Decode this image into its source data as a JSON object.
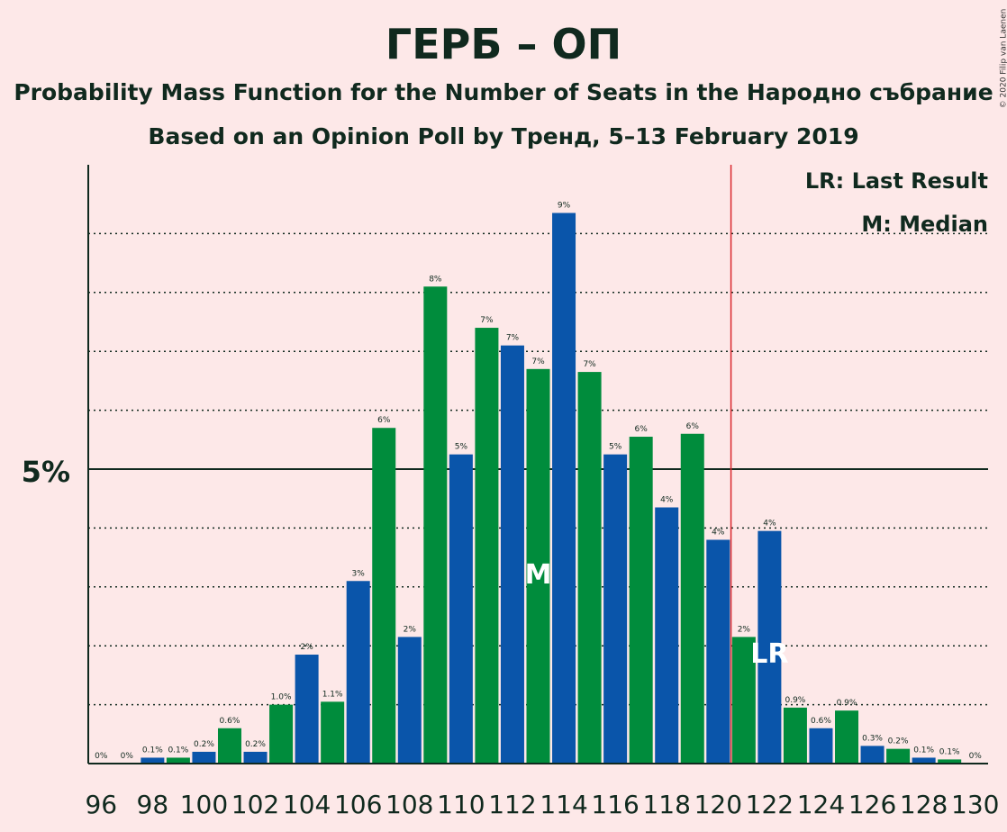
{
  "title": "ГЕРБ – ОП",
  "subtitle": "Probability Mass Function for the Number of Seats in the Народно събрание",
  "subtitle2": "Based on an Opinion Poll by Тренд, 5–13 February 2019",
  "credit": "© 2020 Filip van Laenen",
  "legend": {
    "last_result": "LR: Last Result",
    "median": "M: Median"
  },
  "colors": {
    "background": "#fde8e8",
    "green": "#008c3c",
    "blue": "#0a55aa",
    "last_result_line": "#d9262b",
    "text": "#10291e"
  },
  "chart_data": {
    "type": "bar",
    "x": [
      96,
      97,
      98,
      99,
      100,
      101,
      102,
      103,
      104,
      105,
      106,
      107,
      108,
      109,
      110,
      111,
      112,
      113,
      114,
      115,
      116,
      117,
      118,
      119,
      120,
      121,
      122,
      123,
      124,
      125,
      126,
      127,
      128,
      129,
      130
    ],
    "values": [
      0,
      0,
      0.1,
      0.1,
      0.2,
      0.6,
      0.2,
      1.0,
      1.85,
      1.05,
      3.1,
      5.7,
      2.15,
      8.1,
      5.25,
      7.4,
      7.1,
      6.7,
      9.35,
      6.65,
      5.25,
      5.55,
      4.35,
      5.6,
      3.8,
      2.15,
      3.95,
      0.95,
      0.6,
      0.9,
      0.3,
      0.25,
      0.1,
      0.07,
      0
    ],
    "data_labels": [
      "0%",
      "0%",
      "0.1%",
      "0.1%",
      "0.2%",
      "0.6%",
      "0.2%",
      "1.0%",
      "2%",
      "1.1%",
      "3%",
      "6%",
      "2%",
      "8%",
      "5%",
      "7%",
      "7%",
      "7%",
      "9%",
      "7%",
      "5%",
      "6%",
      "4%",
      "6%",
      "4%",
      "2%",
      "4%",
      "0.9%",
      "0.6%",
      "0.9%",
      "0.3%",
      "0.2%",
      "0.1%",
      "0.1%",
      "0%"
    ],
    "x_tick_labels": [
      "96",
      "98",
      "100",
      "102",
      "104",
      "106",
      "108",
      "110",
      "112",
      "114",
      "116",
      "118",
      "120",
      "122",
      "124",
      "126",
      "128",
      "130"
    ],
    "y_tick_label": "5%",
    "ylim": [
      0,
      10
    ],
    "y_gridlines": [
      1,
      2,
      3,
      4,
      6,
      7,
      8,
      9
    ],
    "median": 113,
    "median_label": "M",
    "last_result": 122,
    "last_result_label": "LR",
    "majority_line": 120.5
  }
}
